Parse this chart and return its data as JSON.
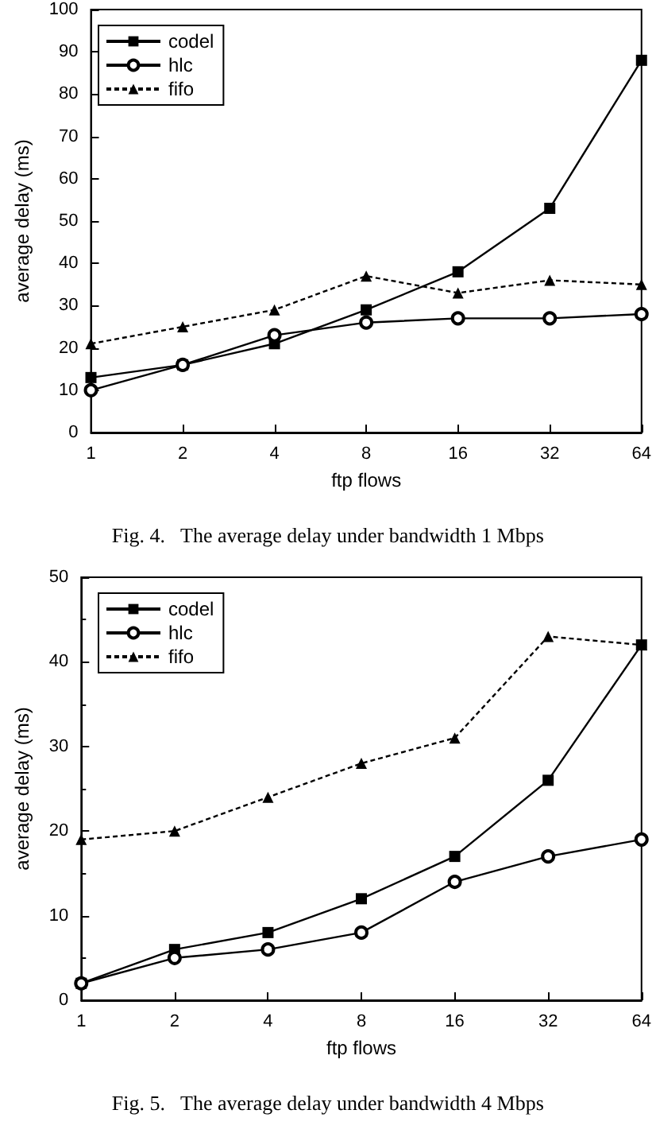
{
  "chart_data": [
    {
      "type": "line",
      "xlabel": "ftp flows",
      "ylabel": "average delay (ms)",
      "categories": [
        "1",
        "2",
        "4",
        "8",
        "16",
        "32",
        "64"
      ],
      "ylim": [
        0,
        100
      ],
      "yticks": [
        0,
        10,
        20,
        30,
        40,
        50,
        60,
        70,
        80,
        90,
        100
      ],
      "grid": false,
      "legend": "top left",
      "annotations": [
        "Fig. 4.   The average delay under bandwidth 1 Mbps"
      ],
      "series": [
        {
          "name": "codel",
          "color": "#000000",
          "marker": "square",
          "line_style": "solid",
          "values": [
            13,
            16,
            21,
            29,
            38,
            53,
            88
          ]
        },
        {
          "name": "hlc",
          "color": "#000000",
          "marker": "circle",
          "line_style": "solid",
          "values": [
            10,
            16,
            23,
            26,
            27,
            27,
            28
          ]
        },
        {
          "name": "fifo",
          "color": "#000000",
          "marker": "triangle",
          "line_style": "dashed",
          "values": [
            21,
            25,
            29,
            37,
            33,
            36,
            35
          ]
        }
      ]
    },
    {
      "type": "line",
      "xlabel": "ftp flows",
      "ylabel": "average delay (ms)",
      "categories": [
        "1",
        "2",
        "4",
        "8",
        "16",
        "32",
        "64"
      ],
      "ylim": [
        0,
        50
      ],
      "yticks": [
        0,
        10,
        20,
        30,
        40,
        50
      ],
      "grid": false,
      "legend": "top left",
      "annotations": [
        "Fig. 5.   The average delay under bandwidth 4 Mbps"
      ],
      "series": [
        {
          "name": "codel",
          "color": "#000000",
          "marker": "square",
          "line_style": "solid",
          "values": [
            2,
            6,
            8,
            12,
            17,
            26,
            42
          ]
        },
        {
          "name": "hlc",
          "color": "#000000",
          "marker": "circle",
          "line_style": "solid",
          "values": [
            2,
            5,
            6,
            8,
            14,
            17,
            19
          ]
        },
        {
          "name": "fifo",
          "color": "#000000",
          "marker": "triangle",
          "line_style": "dashed",
          "values": [
            19,
            20,
            24,
            28,
            31,
            43,
            42
          ]
        }
      ]
    }
  ]
}
